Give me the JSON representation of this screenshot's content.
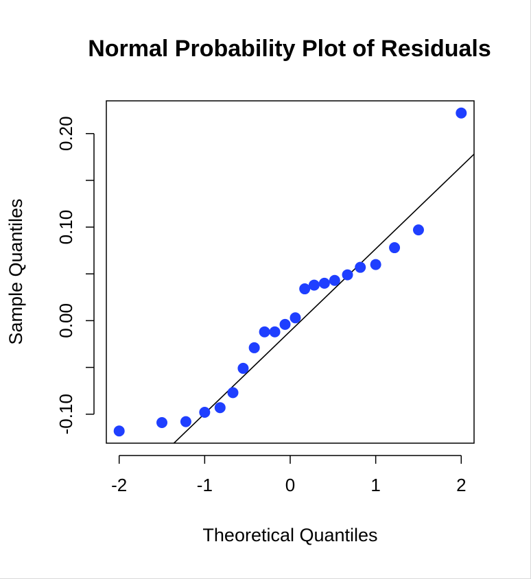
{
  "chart_data": {
    "type": "scatter",
    "title": "Normal Probability Plot of Residuals",
    "xlabel": "Theoretical Quantiles",
    "ylabel": "Sample Quantiles",
    "xlim": [
      -2.15,
      2.15
    ],
    "ylim": [
      -0.131,
      0.235
    ],
    "x_ticks": [
      -2,
      -1,
      0,
      1,
      2
    ],
    "x_tick_labels": [
      "-2",
      "-1",
      "0",
      "1",
      "2"
    ],
    "y_ticks": [
      -0.1,
      -0.05,
      0.0,
      0.05,
      0.1,
      0.15,
      0.2
    ],
    "y_tick_labels": [
      "-0.10",
      "",
      "0.00",
      "",
      "0.10",
      "",
      "0.20"
    ],
    "grid": false,
    "point_color": "#1f3fff",
    "line_color": "#000000",
    "reference_line": {
      "x1": -1.36,
      "y1": -0.131,
      "x2": 2.15,
      "y2": 0.178
    },
    "series": [
      {
        "x": [
          -2.0,
          -1.5,
          -1.22,
          -1.0,
          -0.82,
          -0.67,
          -0.55,
          -0.42,
          -0.3,
          -0.18,
          -0.06,
          0.06,
          0.17,
          0.28,
          0.4,
          0.52,
          0.67,
          0.82,
          1.0,
          1.22,
          1.5,
          2.0
        ],
        "y": [
          -0.118,
          -0.109,
          -0.108,
          -0.098,
          -0.093,
          -0.077,
          -0.051,
          -0.029,
          -0.012,
          -0.012,
          -0.004,
          0.003,
          0.034,
          0.038,
          0.04,
          0.043,
          0.049,
          0.057,
          0.06,
          0.078,
          0.097,
          0.222
        ]
      }
    ]
  }
}
